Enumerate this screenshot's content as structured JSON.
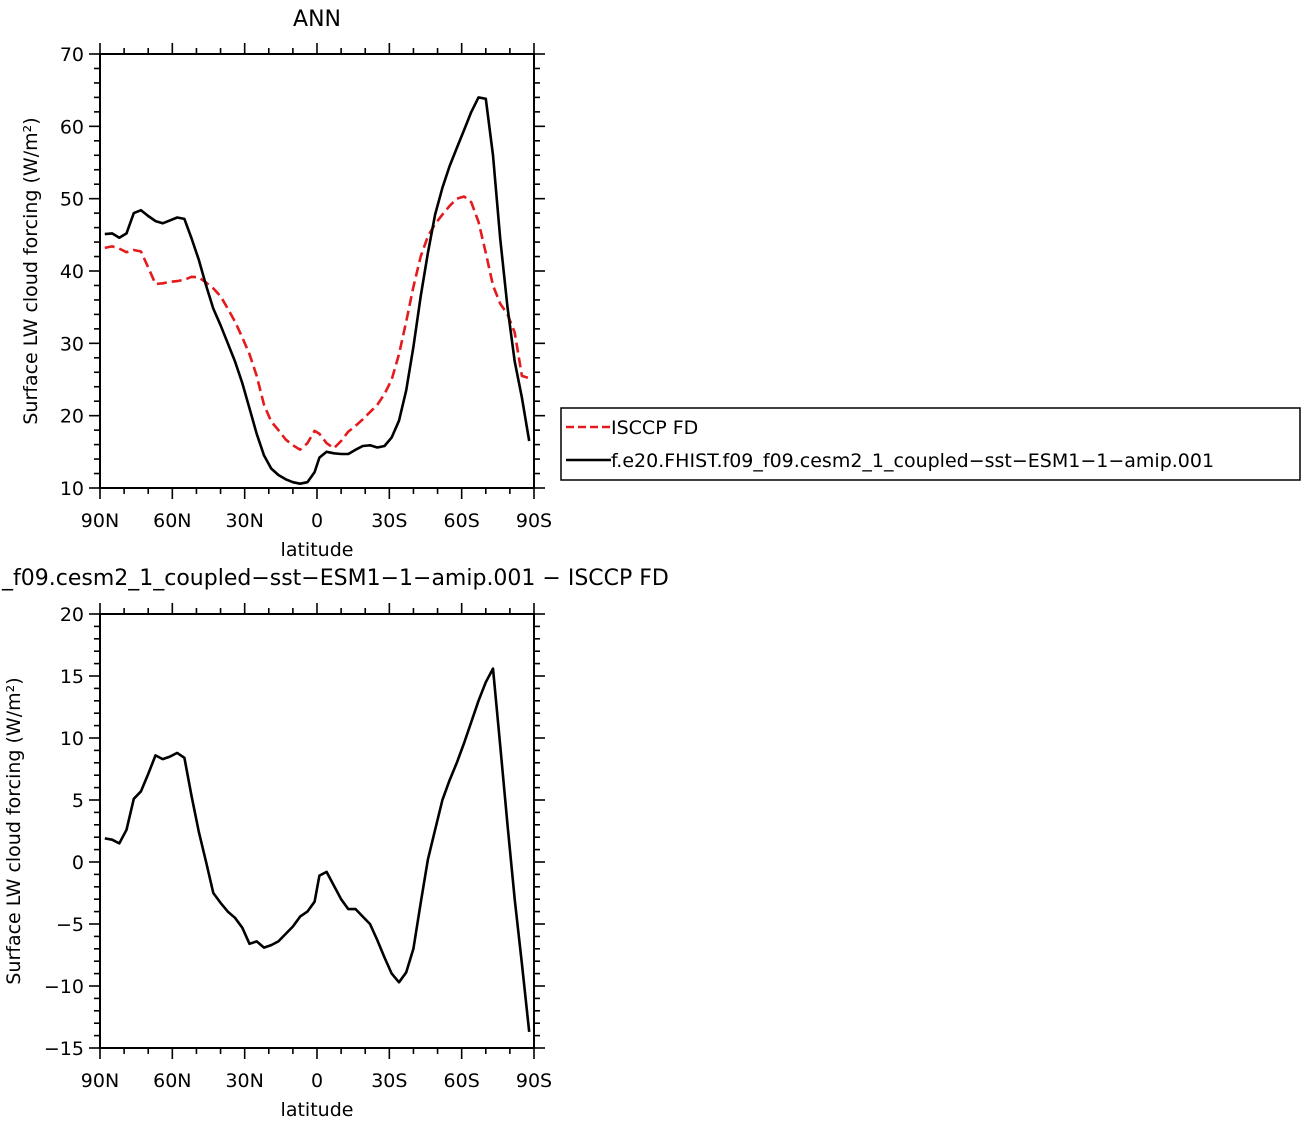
{
  "chart_data": [
    {
      "type": "line",
      "title": "ANN",
      "xlabel": "latitude",
      "ylabel": "Surface LW cloud forcing (W/m²)",
      "xlim": [
        90,
        -90
      ],
      "ylim": [
        10,
        70
      ],
      "xticks": [
        90,
        60,
        30,
        0,
        -30,
        -60,
        -90
      ],
      "xtick_labels": [
        "90N",
        "60N",
        "30N",
        "0",
        "30S",
        "60S",
        "90S"
      ],
      "yticks": [
        10,
        20,
        30,
        40,
        50,
        60,
        70
      ],
      "ytick_labels": [
        "10",
        "20",
        "30",
        "40",
        "50",
        "60",
        "70"
      ],
      "legend": "right",
      "series": [
        {
          "name": "ISCCP FD",
          "color": "#e41a1c",
          "dash": "dashed",
          "x": [
            88,
            85,
            82,
            79,
            76,
            73,
            70,
            67,
            64,
            61,
            58,
            55,
            52,
            49,
            46,
            43,
            40,
            37,
            34,
            31,
            28,
            25,
            22,
            19,
            16,
            13,
            10,
            7,
            4,
            1,
            -1,
            -4,
            -7,
            -10,
            -13,
            -16,
            -19,
            -22,
            -25,
            -28,
            -31,
            -34,
            -37,
            -40,
            -43,
            -46,
            -49,
            -52,
            -55,
            -58,
            -61,
            -64,
            -67,
            -70,
            -73,
            -76,
            -79,
            -82,
            -85,
            -88
          ],
          "y": [
            43.2,
            43.4,
            43.1,
            42.6,
            42.9,
            42.7,
            40.5,
            38.2,
            38.3,
            38.5,
            38.6,
            38.8,
            39.2,
            39.1,
            38.4,
            37.6,
            36.5,
            34.8,
            33.0,
            30.8,
            28.5,
            25.5,
            21.5,
            19.2,
            18.0,
            16.7,
            15.9,
            15.3,
            16.2,
            17.9,
            17.5,
            16.2,
            15.5,
            16.5,
            17.8,
            18.6,
            19.5,
            20.5,
            21.5,
            23.0,
            25.0,
            28.5,
            33.0,
            37.8,
            42.0,
            44.8,
            46.5,
            47.8,
            49.0,
            50.0,
            50.3,
            49.5,
            46.8,
            42.5,
            38.0,
            35.5,
            34.0,
            31.5,
            25.5,
            25.2
          ]
        },
        {
          "name": "f.e20.FHIST.f09_f09.cesm2_1_coupled−sst−ESM1−1−amip.001",
          "color": "#000000",
          "dash": "solid",
          "x": [
            88,
            85,
            82,
            79,
            76,
            73,
            70,
            67,
            64,
            61,
            58,
            55,
            52,
            49,
            46,
            43,
            40,
            37,
            34,
            31,
            28,
            25,
            22,
            19,
            16,
            13,
            10,
            7,
            4,
            1,
            -1,
            -4,
            -7,
            -10,
            -13,
            -16,
            -19,
            -22,
            -25,
            -28,
            -31,
            -34,
            -37,
            -40,
            -43,
            -46,
            -49,
            -52,
            -55,
            -58,
            -61,
            -64,
            -67,
            -70,
            -73,
            -76,
            -79,
            -82,
            -85,
            -88
          ],
          "y": [
            45.1,
            45.2,
            44.6,
            45.2,
            48.0,
            48.4,
            47.6,
            46.9,
            46.6,
            47.0,
            47.4,
            47.2,
            44.5,
            41.5,
            38.0,
            34.8,
            32.5,
            30.0,
            27.5,
            24.5,
            21.0,
            17.5,
            14.5,
            12.7,
            11.8,
            11.2,
            10.8,
            10.6,
            10.8,
            12.2,
            14.2,
            15.0,
            14.8,
            14.7,
            14.7,
            15.3,
            15.8,
            15.9,
            15.6,
            15.8,
            17.0,
            19.3,
            23.5,
            29.5,
            36.5,
            42.5,
            47.8,
            51.5,
            54.5,
            57.0,
            59.5,
            62.0,
            64.0,
            63.8,
            56.0,
            44.5,
            35.0,
            27.5,
            22.5,
            16.5
          ]
        }
      ]
    },
    {
      "type": "line",
      "title": "_f09.cesm2_1_coupled−sst−ESM1−1−amip.001 − ISCCP FD",
      "xlabel": "latitude",
      "ylabel": "Surface LW cloud forcing (W/m²)",
      "xlim": [
        90,
        -90
      ],
      "ylim": [
        -15,
        20
      ],
      "xticks": [
        90,
        60,
        30,
        0,
        -30,
        -60,
        -90
      ],
      "xtick_labels": [
        "90N",
        "60N",
        "30N",
        "0",
        "30S",
        "60S",
        "90S"
      ],
      "yticks": [
        -15,
        -10,
        -5,
        0,
        5,
        10,
        15,
        20
      ],
      "ytick_labels": [
        "−15",
        "−10",
        "−5",
        "0",
        "5",
        "10",
        "15",
        "20"
      ],
      "series": [
        {
          "color": "#000000",
          "dash": "solid",
          "x": [
            88,
            85,
            82,
            79,
            76,
            73,
            70,
            67,
            64,
            61,
            58,
            55,
            52,
            49,
            46,
            43,
            40,
            37,
            34,
            31,
            28,
            25,
            22,
            19,
            16,
            13,
            10,
            7,
            4,
            1,
            -1,
            -4,
            -7,
            -10,
            -13,
            -16,
            -19,
            -22,
            -25,
            -28,
            -31,
            -34,
            -37,
            -40,
            -43,
            -46,
            -49,
            -52,
            -55,
            -58,
            -61,
            -64,
            -67,
            -70,
            -73,
            -76,
            -79,
            -82,
            -85,
            -88
          ],
          "y": [
            1.9,
            1.8,
            1.5,
            2.6,
            5.1,
            5.7,
            7.1,
            8.6,
            8.3,
            8.5,
            8.8,
            8.4,
            5.3,
            2.4,
            0.0,
            -2.5,
            -3.3,
            -4.0,
            -4.5,
            -5.3,
            -6.6,
            -6.4,
            -6.9,
            -6.7,
            -6.4,
            -5.8,
            -5.2,
            -4.4,
            -4.0,
            -3.2,
            -1.1,
            -0.8,
            -1.9,
            -3.0,
            -3.8,
            -3.8,
            -4.4,
            -5.0,
            -6.3,
            -7.7,
            -9.0,
            -9.7,
            -8.9,
            -7.0,
            -3.3,
            0.2,
            2.6,
            5.0,
            6.6,
            8.0,
            9.6,
            11.3,
            13.0,
            14.5,
            15.6,
            9.4,
            3.0,
            -3.0,
            -8.2,
            -13.7
          ]
        }
      ]
    }
  ]
}
